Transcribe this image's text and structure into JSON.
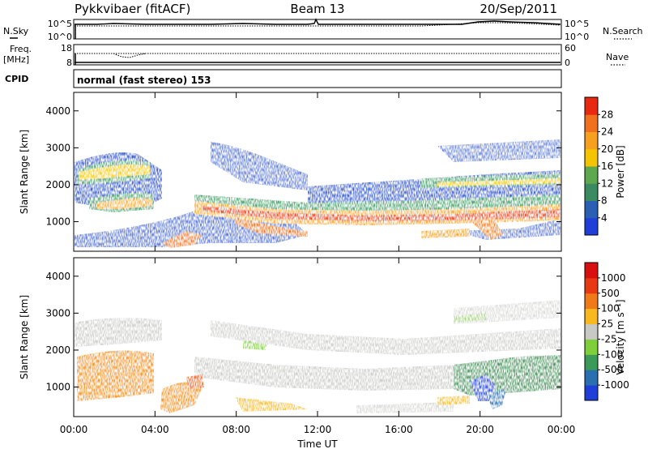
{
  "header": {
    "radar": "Pykkvibaer (fitACF)",
    "beam": "Beam 13",
    "date": "20/Sep/2011"
  },
  "top_panels": {
    "nsky_label": "N.Sky",
    "nsearch_label": "N.Search",
    "noise_ticks": [
      "10^5",
      "10^0"
    ],
    "freq_label_1": "Freq.",
    "freq_label_2": "[MHz]",
    "freq_ticks": [
      "18",
      "8"
    ],
    "nave_label": "Nave",
    "nave_ticks": [
      "60",
      "0"
    ],
    "cpid_label": "CPID",
    "cpid_text": "normal (fast stereo) 153"
  },
  "chart_data": [
    {
      "type": "heatmap",
      "name": "power",
      "ylabel": "Slant Range [km]",
      "xlabel": "",
      "yticks": [
        "1000",
        "2000",
        "3000",
        "4000"
      ],
      "ylim": [
        200,
        4500
      ],
      "xlim": [
        0,
        24
      ],
      "colorbar": {
        "label": "Power [dB]",
        "ticks": [
          "4",
          "8",
          "12",
          "16",
          "20",
          "24",
          "28"
        ],
        "colors": [
          "#1f3fd8",
          "#2a5fb4",
          "#3c8a62",
          "#5fa850",
          "#f5c400",
          "#f7a020",
          "#f07020",
          "#e82810"
        ]
      }
    },
    {
      "type": "heatmap",
      "name": "velocity",
      "ylabel": "Slant Range [km]",
      "xlabel": "Time UT",
      "xticks": [
        "00:00",
        "04:00",
        "08:00",
        "12:00",
        "16:00",
        "20:00",
        "00:00"
      ],
      "yticks": [
        "1000",
        "2000",
        "3000",
        "4000"
      ],
      "ylim": [
        200,
        4500
      ],
      "xlim": [
        0,
        24
      ],
      "colorbar": {
        "label": "Velocity [m s⁻¹]",
        "ticks": [
          "1000",
          "500",
          "100",
          "25",
          "-25",
          "-100",
          "-500",
          "-1000"
        ],
        "colors": [
          "#1f3fd8",
          "#2a6fb0",
          "#3c9a58",
          "#7ecf3a",
          "#c8c8c4",
          "#f7b820",
          "#f07a18",
          "#e83a12",
          "#d81010"
        ]
      }
    }
  ]
}
